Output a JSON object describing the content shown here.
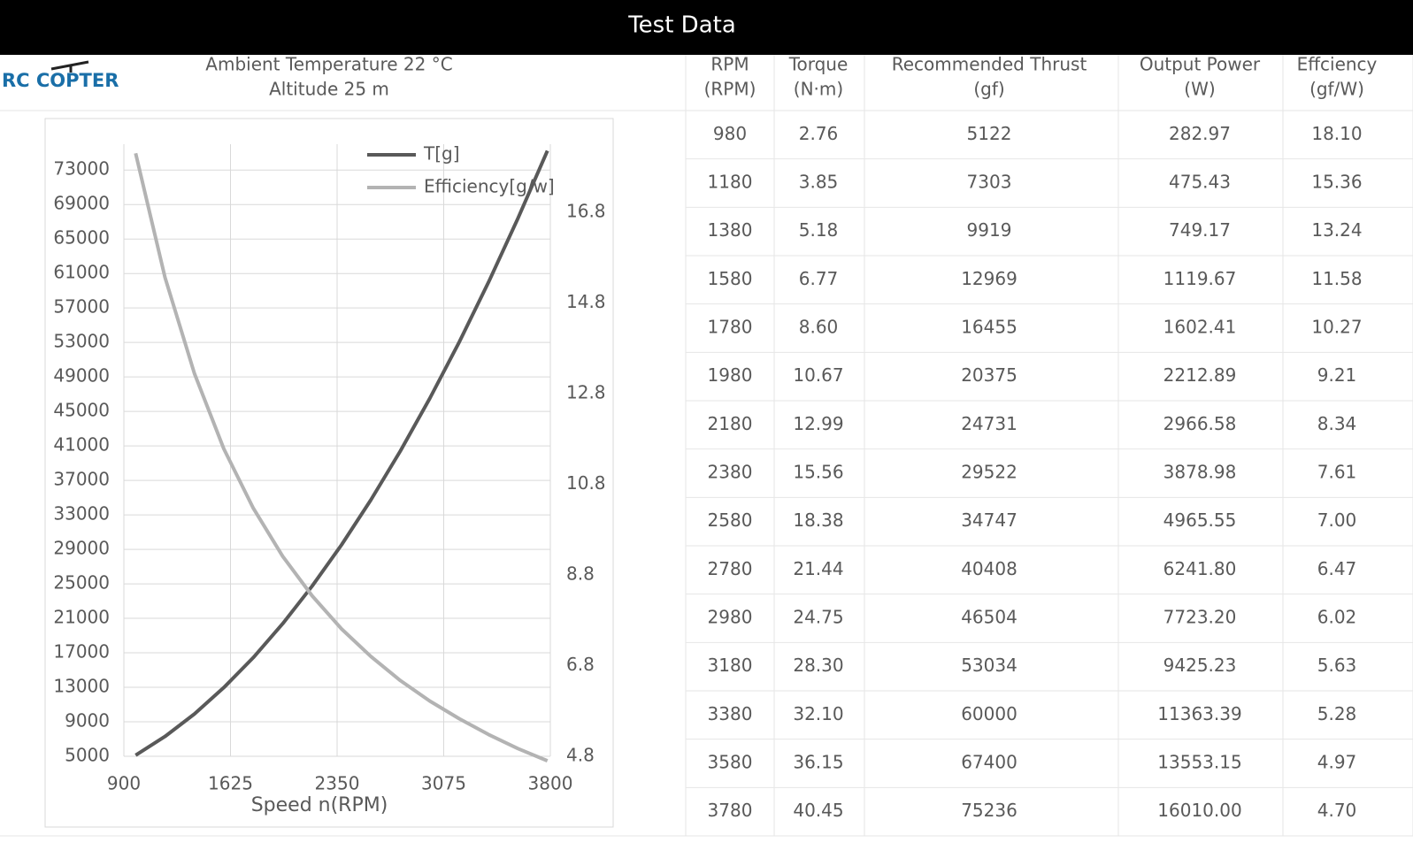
{
  "header": {
    "title": "Test Data"
  },
  "logo": "RC COPTER",
  "info": {
    "temperature": "Ambient Temperature  22 °C",
    "altitude": "Altitude  25 m"
  },
  "chart_data": {
    "type": "line",
    "x_label": "Speed n(RPM)",
    "x": [
      980,
      1180,
      1380,
      1580,
      1780,
      1980,
      2180,
      2380,
      2580,
      2780,
      2980,
      3180,
      3380,
      3580,
      3780
    ],
    "xlim": [
      900,
      3800
    ],
    "xticks": [
      900,
      1625,
      2350,
      3075,
      3800
    ],
    "ylim": [
      5000,
      76000
    ],
    "yticks": [
      5000,
      9000,
      13000,
      17000,
      21000,
      25000,
      29000,
      33000,
      37000,
      41000,
      45000,
      49000,
      53000,
      57000,
      61000,
      65000,
      69000,
      73000
    ],
    "y2lim": [
      4.8,
      18.3
    ],
    "y2ticks": [
      4.8,
      6.8,
      8.8,
      10.8,
      12.8,
      14.8,
      16.8
    ],
    "grid": true,
    "legend": "top",
    "series": [
      {
        "name": "T[g]",
        "color": "#595959",
        "values": [
          5122,
          7303,
          9919,
          12969,
          16455,
          20375,
          24731,
          29522,
          34747,
          40408,
          46504,
          53034,
          60000,
          67400,
          75236
        ]
      },
      {
        "name": "Efficiency[g/w]",
        "color": "#b3b3b3",
        "axis": "y2",
        "values": [
          18.1,
          15.36,
          13.24,
          11.58,
          10.27,
          9.21,
          8.34,
          7.61,
          7.0,
          6.47,
          6.02,
          5.63,
          5.28,
          4.97,
          4.7
        ]
      }
    ]
  },
  "table": {
    "headers": [
      [
        "RPM",
        "(RPM)"
      ],
      [
        "Torque",
        "(N·m)"
      ],
      [
        "Recommended Thrust",
        "(gf)"
      ],
      [
        "Output Power",
        "(W)"
      ],
      [
        "Effciency",
        "(gf/W)"
      ]
    ],
    "rows": [
      [
        "980",
        "2.76",
        "5122",
        "282.97",
        "18.10"
      ],
      [
        "1180",
        "3.85",
        "7303",
        "475.43",
        "15.36"
      ],
      [
        "1380",
        "5.18",
        "9919",
        "749.17",
        "13.24"
      ],
      [
        "1580",
        "6.77",
        "12969",
        "1119.67",
        "11.58"
      ],
      [
        "1780",
        "8.60",
        "16455",
        "1602.41",
        "10.27"
      ],
      [
        "1980",
        "10.67",
        "20375",
        "2212.89",
        "9.21"
      ],
      [
        "2180",
        "12.99",
        "24731",
        "2966.58",
        "8.34"
      ],
      [
        "2380",
        "15.56",
        "29522",
        "3878.98",
        "7.61"
      ],
      [
        "2580",
        "18.38",
        "34747",
        "4965.55",
        "7.00"
      ],
      [
        "2780",
        "21.44",
        "40408",
        "6241.80",
        "6.47"
      ],
      [
        "2980",
        "24.75",
        "46504",
        "7723.20",
        "6.02"
      ],
      [
        "3180",
        "28.30",
        "53034",
        "9425.23",
        "5.63"
      ],
      [
        "3380",
        "32.10",
        "60000",
        "11363.39",
        "5.28"
      ],
      [
        "3580",
        "36.15",
        "67400",
        "13553.15",
        "4.97"
      ],
      [
        "3780",
        "40.45",
        "75236",
        "16010.00",
        "4.70"
      ]
    ]
  }
}
